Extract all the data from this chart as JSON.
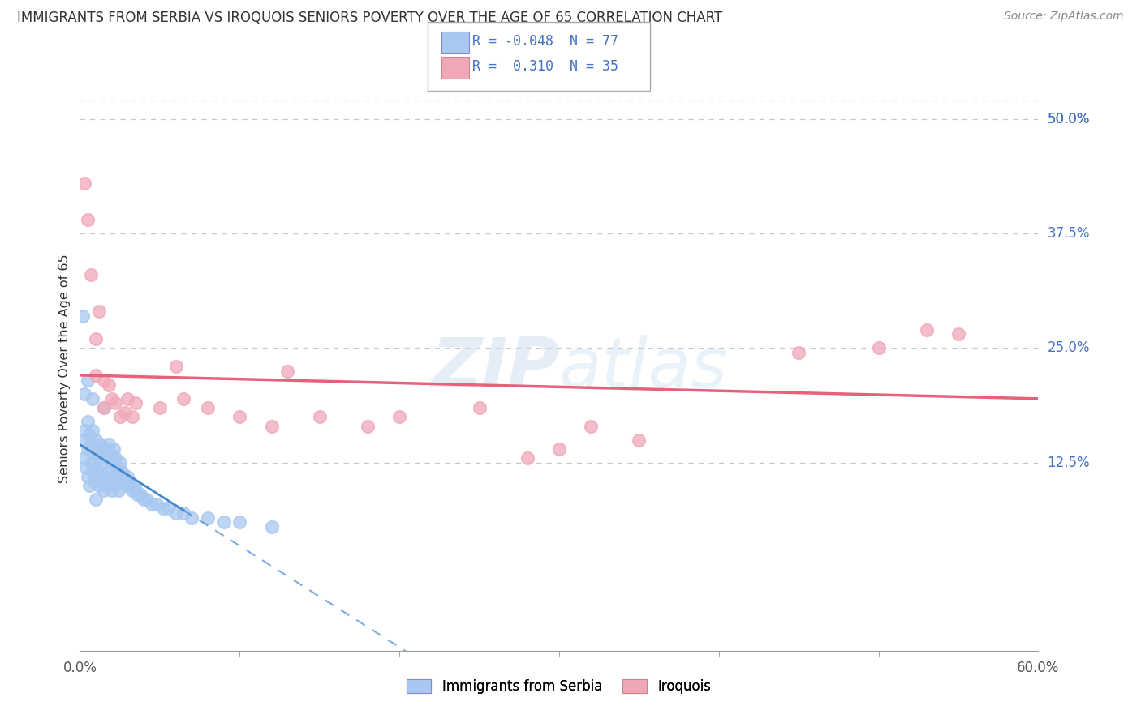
{
  "title": "IMMIGRANTS FROM SERBIA VS IROQUOIS SENIORS POVERTY OVER THE AGE OF 65 CORRELATION CHART",
  "source": "Source: ZipAtlas.com",
  "ylabel": "Seniors Poverty Over the Age of 65",
  "xlim": [
    0.0,
    0.6
  ],
  "ylim": [
    -0.05,
    0.52
  ],
  "plot_ylim": [
    0.0,
    0.52
  ],
  "xtick_labels": [
    "0.0%",
    "60.0%"
  ],
  "ytick_labels": [
    "12.5%",
    "25.0%",
    "37.5%",
    "50.0%"
  ],
  "ytick_values": [
    0.125,
    0.25,
    0.375,
    0.5
  ],
  "xtick_values": [
    0.0,
    0.6
  ],
  "grid_color": "#c8c8c8",
  "background_color": "#ffffff",
  "legend_R_serbia": "-0.048",
  "legend_N_serbia": "77",
  "legend_R_iroquois": "0.310",
  "legend_N_iroquois": "35",
  "serbia_color": "#a8c8f0",
  "iroquois_color": "#f0a8b8",
  "serbia_line_color": "#4488cc",
  "iroquois_line_color": "#e8607a",
  "serbia_scatter_x": [
    0.002,
    0.003,
    0.003,
    0.004,
    0.005,
    0.005,
    0.005,
    0.006,
    0.006,
    0.007,
    0.007,
    0.008,
    0.008,
    0.009,
    0.009,
    0.01,
    0.01,
    0.01,
    0.011,
    0.011,
    0.012,
    0.012,
    0.013,
    0.013,
    0.014,
    0.014,
    0.015,
    0.015,
    0.016,
    0.016,
    0.017,
    0.017,
    0.018,
    0.018,
    0.019,
    0.019,
    0.02,
    0.02,
    0.021,
    0.021,
    0.022,
    0.022,
    0.023,
    0.024,
    0.024,
    0.025,
    0.025,
    0.026,
    0.027,
    0.028,
    0.029,
    0.03,
    0.031,
    0.032,
    0.033,
    0.034,
    0.035,
    0.036,
    0.038,
    0.04,
    0.042,
    0.045,
    0.048,
    0.052,
    0.055,
    0.06,
    0.065,
    0.07,
    0.08,
    0.09,
    0.1,
    0.12,
    0.002,
    0.003,
    0.005,
    0.008,
    0.015
  ],
  "serbia_scatter_y": [
    0.15,
    0.13,
    0.16,
    0.12,
    0.14,
    0.11,
    0.17,
    0.1,
    0.155,
    0.125,
    0.145,
    0.115,
    0.16,
    0.105,
    0.135,
    0.12,
    0.15,
    0.085,
    0.14,
    0.11,
    0.13,
    0.1,
    0.145,
    0.115,
    0.135,
    0.105,
    0.125,
    0.095,
    0.14,
    0.11,
    0.13,
    0.1,
    0.145,
    0.115,
    0.135,
    0.105,
    0.125,
    0.095,
    0.14,
    0.11,
    0.13,
    0.1,
    0.12,
    0.115,
    0.095,
    0.125,
    0.105,
    0.115,
    0.11,
    0.105,
    0.1,
    0.11,
    0.105,
    0.1,
    0.095,
    0.1,
    0.095,
    0.09,
    0.09,
    0.085,
    0.085,
    0.08,
    0.08,
    0.075,
    0.075,
    0.07,
    0.07,
    0.065,
    0.065,
    0.06,
    0.06,
    0.055,
    0.285,
    0.2,
    0.215,
    0.195,
    0.185
  ],
  "iroquois_scatter_x": [
    0.003,
    0.005,
    0.007,
    0.01,
    0.01,
    0.012,
    0.015,
    0.015,
    0.018,
    0.02,
    0.022,
    0.025,
    0.028,
    0.03,
    0.033,
    0.035,
    0.05,
    0.06,
    0.065,
    0.08,
    0.1,
    0.12,
    0.13,
    0.15,
    0.18,
    0.2,
    0.25,
    0.28,
    0.3,
    0.32,
    0.35,
    0.45,
    0.5,
    0.53,
    0.55
  ],
  "iroquois_scatter_y": [
    0.43,
    0.39,
    0.33,
    0.22,
    0.26,
    0.29,
    0.185,
    0.215,
    0.21,
    0.195,
    0.19,
    0.175,
    0.18,
    0.195,
    0.175,
    0.19,
    0.185,
    0.23,
    0.195,
    0.185,
    0.175,
    0.165,
    0.225,
    0.175,
    0.165,
    0.175,
    0.185,
    0.13,
    0.14,
    0.165,
    0.15,
    0.245,
    0.25,
    0.27,
    0.265
  ]
}
